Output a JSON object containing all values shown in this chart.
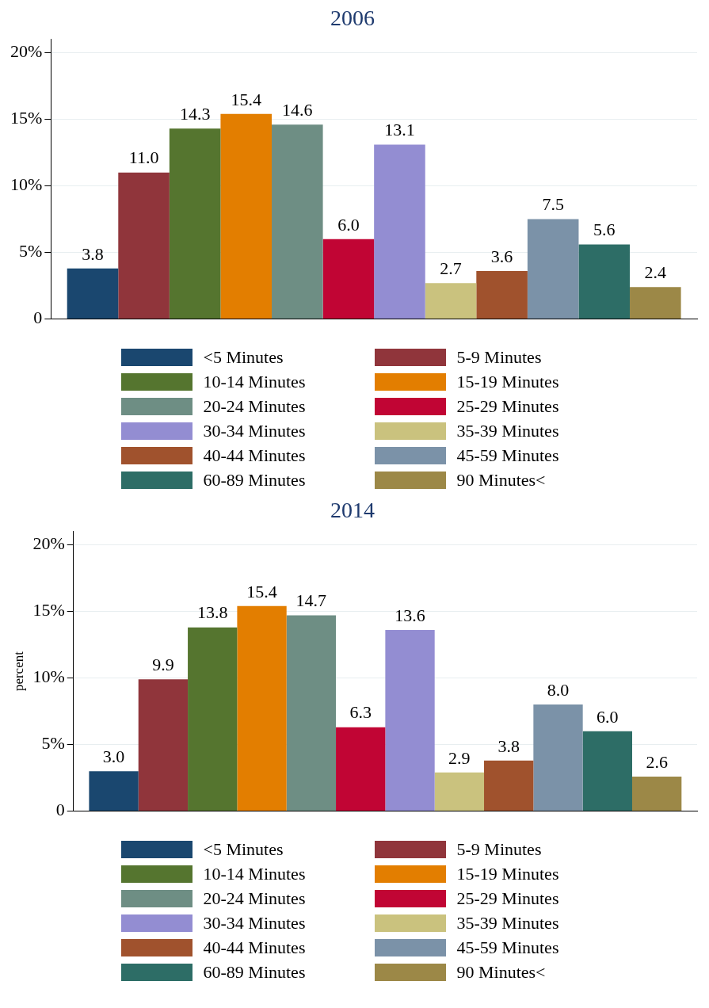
{
  "chart_data": [
    {
      "type": "bar",
      "title": "2006",
      "categories": [
        null
      ],
      "ylim": [
        0,
        21
      ],
      "yticks": [
        {
          "value": 0,
          "label": "0"
        },
        {
          "value": 5,
          "label": "5%"
        },
        {
          "value": 10,
          "label": "10%"
        },
        {
          "value": 15,
          "label": "15%"
        },
        {
          "value": 20,
          "label": "20%"
        }
      ],
      "grid": "y",
      "legend": "bottom",
      "series": [
        {
          "name": "<5 Minutes",
          "color": "#1a476f",
          "values": [
            3.8
          ],
          "value_labels": [
            "3.8"
          ]
        },
        {
          "name": "5-9 Minutes",
          "color": "#90353b",
          "values": [
            11.0
          ],
          "value_labels": [
            "11.0"
          ]
        },
        {
          "name": "10-14 Minutes",
          "color": "#55752f",
          "values": [
            14.3
          ],
          "value_labels": [
            "14.3"
          ]
        },
        {
          "name": "15-19 Minutes",
          "color": "#e37e00",
          "values": [
            15.4
          ],
          "value_labels": [
            "15.4"
          ]
        },
        {
          "name": "20-24 Minutes",
          "color": "#6e8e84",
          "values": [
            14.6
          ],
          "value_labels": [
            "14.6"
          ]
        },
        {
          "name": "25-29 Minutes",
          "color": "#c10534",
          "values": [
            6.0
          ],
          "value_labels": [
            "6.0"
          ]
        },
        {
          "name": "30-34 Minutes",
          "color": "#938dd2",
          "values": [
            13.1
          ],
          "value_labels": [
            "13.1"
          ]
        },
        {
          "name": "35-39 Minutes",
          "color": "#cac27e",
          "values": [
            2.7
          ],
          "value_labels": [
            "2.7"
          ]
        },
        {
          "name": "40-44 Minutes",
          "color": "#a0522d",
          "values": [
            3.6
          ],
          "value_labels": [
            "3.6"
          ]
        },
        {
          "name": "45-59 Minutes",
          "color": "#7b92a8",
          "values": [
            7.5
          ],
          "value_labels": [
            "7.5"
          ]
        },
        {
          "name": "60-89 Minutes",
          "color": "#2d6d66",
          "values": [
            5.6
          ],
          "value_labels": [
            "5.6"
          ]
        },
        {
          "name": "90 Minutes<",
          "color": "#9c8847",
          "values": [
            2.4
          ],
          "value_labels": [
            "2.4"
          ]
        }
      ]
    },
    {
      "type": "bar",
      "title": "2014",
      "ylabel": "percent",
      "categories": [
        null
      ],
      "ylim": [
        0,
        21
      ],
      "yticks": [
        {
          "value": 0,
          "label": "0"
        },
        {
          "value": 5,
          "label": "5%"
        },
        {
          "value": 10,
          "label": "10%"
        },
        {
          "value": 15,
          "label": "15%"
        },
        {
          "value": 20,
          "label": "20%"
        }
      ],
      "grid": "y",
      "legend": "bottom",
      "series": [
        {
          "name": "<5 Minutes",
          "color": "#1a476f",
          "values": [
            3.0
          ],
          "value_labels": [
            "3.0"
          ]
        },
        {
          "name": "5-9 Minutes",
          "color": "#90353b",
          "values": [
            9.9
          ],
          "value_labels": [
            "9.9"
          ]
        },
        {
          "name": "10-14 Minutes",
          "color": "#55752f",
          "values": [
            13.8
          ],
          "value_labels": [
            "13.8"
          ]
        },
        {
          "name": "15-19 Minutes",
          "color": "#e37e00",
          "values": [
            15.4
          ],
          "value_labels": [
            "15.4"
          ]
        },
        {
          "name": "20-24 Minutes",
          "color": "#6e8e84",
          "values": [
            14.7
          ],
          "value_labels": [
            "14.7"
          ]
        },
        {
          "name": "25-29 Minutes",
          "color": "#c10534",
          "values": [
            6.3
          ],
          "value_labels": [
            "6.3"
          ]
        },
        {
          "name": "30-34 Minutes",
          "color": "#938dd2",
          "values": [
            13.6
          ],
          "value_labels": [
            "13.6"
          ]
        },
        {
          "name": "35-39 Minutes",
          "color": "#cac27e",
          "values": [
            2.9
          ],
          "value_labels": [
            "2.9"
          ]
        },
        {
          "name": "40-44 Minutes",
          "color": "#a0522d",
          "values": [
            3.8
          ],
          "value_labels": [
            "3.8"
          ]
        },
        {
          "name": "45-59 Minutes",
          "color": "#7b92a8",
          "values": [
            8.0
          ],
          "value_labels": [
            "8.0"
          ]
        },
        {
          "name": "60-89 Minutes",
          "color": "#2d6d66",
          "values": [
            6.0
          ],
          "value_labels": [
            "6.0"
          ]
        },
        {
          "name": "90 Minutes<",
          "color": "#9c8847",
          "values": [
            2.6
          ],
          "value_labels": [
            "2.6"
          ]
        }
      ]
    }
  ]
}
